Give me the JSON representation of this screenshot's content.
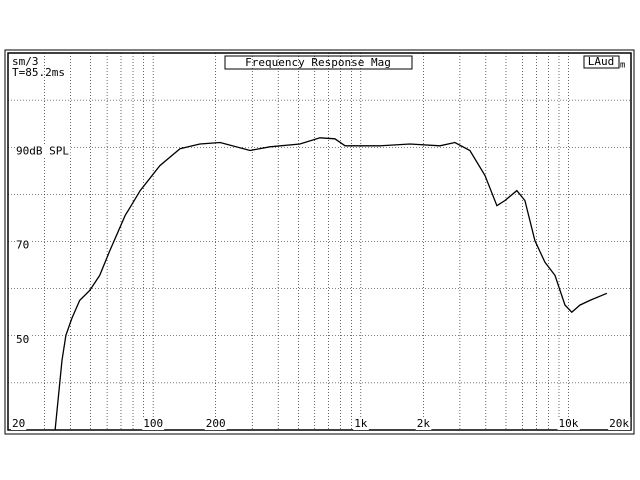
{
  "chart_data": {
    "type": "line",
    "title": "Frequency Response Mag",
    "notes": [
      "sm/3",
      "T=85.2ms"
    ],
    "badge": "LAud",
    "badge_suffix": "m",
    "xscale": "log",
    "color": "#000000",
    "grid": true,
    "xlim": [
      20,
      20000
    ],
    "ylim": [
      30,
      110
    ],
    "xticks": [
      20,
      100,
      200,
      {
        "value": 1000,
        "label": "1k"
      },
      {
        "value": 2000,
        "label": "2k"
      },
      {
        "value": 10000,
        "label": "10k"
      },
      {
        "value": 20000,
        "label": "20k"
      }
    ],
    "xgrid": [
      30,
      40,
      50,
      60,
      70,
      80,
      90,
      300,
      400,
      500,
      600,
      700,
      800,
      900,
      3000,
      4000,
      5000,
      6000,
      7000,
      8000,
      9000
    ],
    "yticks": [
      {
        "value": 90,
        "label": "90dB SPL"
      },
      70,
      50
    ],
    "ygrid": [
      40,
      60,
      80,
      100
    ],
    "x": [
      33.7,
      36.4,
      38,
      40.6,
      44.3,
      49.5,
      55.3,
      61.9,
      73.3,
      86.6,
      107.8,
      134.6,
      168,
      210,
      293,
      365,
      509,
      636,
      750,
      840,
      1236,
      1724,
      2404,
      2839,
      3350,
      3963,
      4520,
      4946,
      5640,
      6166,
      6889,
      7700,
      8610,
      9620,
      10380,
      11350,
      12680,
      15310
    ],
    "values": [
      30,
      44.8,
      50.1,
      53.7,
      57.5,
      59.6,
      62.8,
      68.1,
      75.5,
      80.8,
      86.1,
      89.7,
      90.7,
      91,
      89.3,
      90.1,
      90.7,
      92,
      91.8,
      90.3,
      90.3,
      90.7,
      90.3,
      91,
      89.3,
      84,
      77.6,
      78.7,
      80.8,
      78.7,
      70.2,
      65.6,
      62.8,
      56.5,
      55,
      56.5,
      57.5,
      59
    ]
  }
}
